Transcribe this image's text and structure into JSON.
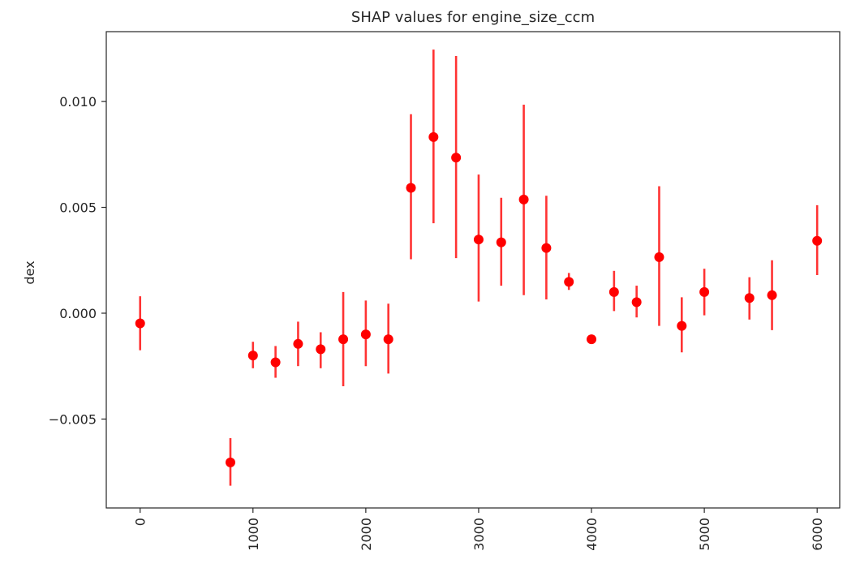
{
  "chart_data": {
    "type": "scatter",
    "title": "SHAP values for engine_size_ccm",
    "xlabel": "",
    "ylabel": "dex",
    "xlim": [
      -300,
      6200
    ],
    "ylim": [
      -0.0092,
      0.0133
    ],
    "x_ticks": [
      0,
      1000,
      2000,
      3000,
      4000,
      5000,
      6000
    ],
    "x_tick_labels": [
      "0",
      "1000",
      "2000",
      "3000",
      "4000",
      "5000",
      "6000"
    ],
    "y_ticks": [
      -0.005,
      0.0,
      0.005,
      0.01
    ],
    "y_tick_labels": [
      "−0.005",
      "0.000",
      "0.005",
      "0.010"
    ],
    "grid": false,
    "legend": false,
    "color": "#ff0000",
    "points": [
      {
        "x": 0,
        "y": -0.00048,
        "low": -0.00175,
        "high": 0.0008
      },
      {
        "x": 800,
        "y": -0.00705,
        "low": -0.00815,
        "high": -0.0059
      },
      {
        "x": 1000,
        "y": -0.002,
        "low": -0.0026,
        "high": -0.00135
      },
      {
        "x": 1200,
        "y": -0.00232,
        "low": -0.00305,
        "high": -0.00155
      },
      {
        "x": 1400,
        "y": -0.00145,
        "low": -0.0025,
        "high": -0.0004
      },
      {
        "x": 1600,
        "y": -0.0017,
        "low": -0.0026,
        "high": -0.0009
      },
      {
        "x": 1800,
        "y": -0.00123,
        "low": -0.00345,
        "high": 0.001
      },
      {
        "x": 2000,
        "y": -0.001,
        "low": -0.0025,
        "high": 0.0006
      },
      {
        "x": 2200,
        "y": -0.00123,
        "low": -0.00285,
        "high": 0.00045
      },
      {
        "x": 2400,
        "y": 0.00592,
        "low": 0.00255,
        "high": 0.0094
      },
      {
        "x": 2600,
        "y": 0.00832,
        "low": 0.00425,
        "high": 0.01245
      },
      {
        "x": 2800,
        "y": 0.00735,
        "low": 0.0026,
        "high": 0.01215
      },
      {
        "x": 3000,
        "y": 0.00348,
        "low": 0.00055,
        "high": 0.00655
      },
      {
        "x": 3200,
        "y": 0.00335,
        "low": 0.0013,
        "high": 0.00545
      },
      {
        "x": 3400,
        "y": 0.00537,
        "low": 0.00085,
        "high": 0.00985
      },
      {
        "x": 3600,
        "y": 0.00308,
        "low": 0.00065,
        "high": 0.00555
      },
      {
        "x": 3800,
        "y": 0.00148,
        "low": 0.0011,
        "high": 0.0019
      },
      {
        "x": 4000,
        "y": -0.00123,
        "low": -0.00123,
        "high": -0.00123
      },
      {
        "x": 4200,
        "y": 0.001,
        "low": 0.0001,
        "high": 0.002
      },
      {
        "x": 4400,
        "y": 0.00052,
        "low": -0.0002,
        "high": 0.0013
      },
      {
        "x": 4600,
        "y": 0.00265,
        "low": -0.0006,
        "high": 0.006
      },
      {
        "x": 4800,
        "y": -0.0006,
        "low": -0.00185,
        "high": 0.00075
      },
      {
        "x": 5000,
        "y": 0.001,
        "low": -0.0001,
        "high": 0.0021
      },
      {
        "x": 5400,
        "y": 0.00072,
        "low": -0.0003,
        "high": 0.0017
      },
      {
        "x": 5600,
        "y": 0.00085,
        "low": -0.0008,
        "high": 0.0025
      },
      {
        "x": 6000,
        "y": 0.00342,
        "low": 0.0018,
        "high": 0.0051
      }
    ]
  }
}
